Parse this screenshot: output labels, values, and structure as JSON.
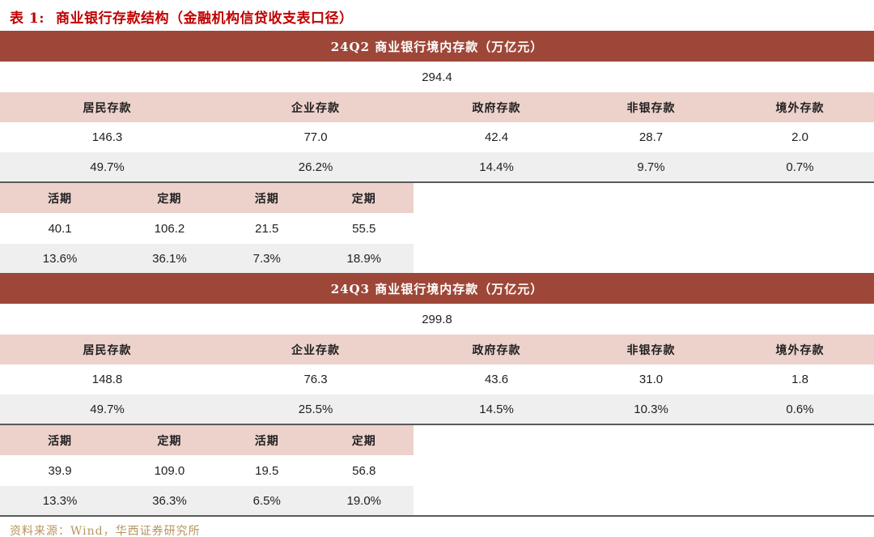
{
  "page": {
    "title_label": "表 1:",
    "title_text": "商业银行存款结构（金融机构信贷收支表口径）",
    "source": "资料来源：Wind，华西证券研究所"
  },
  "colors": {
    "title_red": "#c00000",
    "header_bar_red": "#9e4738",
    "header_row_pink": "#edd2cc",
    "share_row_gray": "#efefef",
    "source_gold": "#b6955e",
    "divider_dark": "#5a5a5a"
  },
  "sections": [
    {
      "header": "24Q2 商业银行境内存款（万亿元）",
      "total": "294.4",
      "categories": [
        "居民存款",
        "企业存款",
        "政府存款",
        "非银存款",
        "境外存款"
      ],
      "values": [
        "146.3",
        "77.0",
        "42.4",
        "28.7",
        "2.0"
      ],
      "shares": [
        "49.7%",
        "26.2%",
        "14.4%",
        "9.7%",
        "0.7%"
      ],
      "sub_headers": [
        "活期",
        "定期",
        "活期",
        "定期"
      ],
      "sub_values": [
        "40.1",
        "106.2",
        "21.5",
        "55.5"
      ],
      "sub_shares": [
        "13.6%",
        "36.1%",
        "7.3%",
        "18.9%"
      ]
    },
    {
      "header": "24Q3 商业银行境内存款（万亿元）",
      "total": "299.8",
      "categories": [
        "居民存款",
        "企业存款",
        "政府存款",
        "非银存款",
        "境外存款"
      ],
      "values": [
        "148.8",
        "76.3",
        "43.6",
        "31.0",
        "1.8"
      ],
      "shares": [
        "49.7%",
        "25.5%",
        "14.5%",
        "10.3%",
        "0.6%"
      ],
      "sub_headers": [
        "活期",
        "定期",
        "活期",
        "定期"
      ],
      "sub_values": [
        "39.9",
        "109.0",
        "19.5",
        "56.8"
      ],
      "sub_shares": [
        "13.3%",
        "36.3%",
        "6.5%",
        "19.0%"
      ]
    }
  ],
  "chart_data": [
    {
      "type": "table",
      "title": "24Q2 商业银行境内存款（万亿元）",
      "total": 294.4,
      "columns": [
        "居民存款",
        "企业存款",
        "政府存款",
        "非银存款",
        "境外存款"
      ],
      "values": [
        146.3,
        77.0,
        42.4,
        28.7,
        2.0
      ],
      "shares_pct": [
        49.7,
        26.2,
        14.4,
        9.7,
        0.7
      ],
      "breakdown": {
        "居民存款": {
          "活期": {
            "value": 40.1,
            "share_pct": 13.6
          },
          "定期": {
            "value": 106.2,
            "share_pct": 36.1
          }
        },
        "企业存款": {
          "活期": {
            "value": 21.5,
            "share_pct": 7.3
          },
          "定期": {
            "value": 55.5,
            "share_pct": 18.9
          }
        }
      }
    },
    {
      "type": "table",
      "title": "24Q3 商业银行境内存款（万亿元）",
      "total": 299.8,
      "columns": [
        "居民存款",
        "企业存款",
        "政府存款",
        "非银存款",
        "境外存款"
      ],
      "values": [
        148.8,
        76.3,
        43.6,
        31.0,
        1.8
      ],
      "shares_pct": [
        49.7,
        25.5,
        14.5,
        10.3,
        0.6
      ],
      "breakdown": {
        "居民存款": {
          "活期": {
            "value": 39.9,
            "share_pct": 13.3
          },
          "定期": {
            "value": 109.0,
            "share_pct": 36.3
          }
        },
        "企业存款": {
          "活期": {
            "value": 19.5,
            "share_pct": 6.5
          },
          "定期": {
            "value": 56.8,
            "share_pct": 19.0
          }
        }
      }
    }
  ]
}
